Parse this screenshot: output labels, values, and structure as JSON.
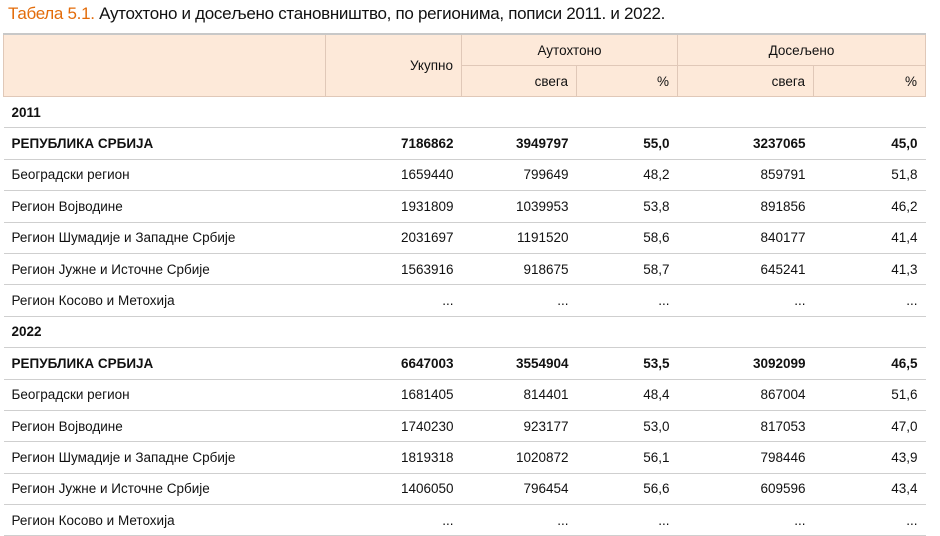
{
  "title": {
    "label": "Табела 5.1.",
    "text": "Аутохтоно и досељено становништво, по регионима, пописи 2011. и 2022."
  },
  "header": {
    "total": "Укупно",
    "autochthonous": "Аутохтоно",
    "immigrated": "Досељено",
    "all": "свега",
    "pct": "%"
  },
  "colors": {
    "title_label": "#e36c0a",
    "header_bg": "#fde9d9"
  },
  "sections": [
    {
      "year": "2011",
      "rows": [
        {
          "label": "РЕПУБЛИКА СРБИЈА",
          "bold": true,
          "values": [
            "7186862",
            "3949797",
            "55,0",
            "3237065",
            "45,0"
          ]
        },
        {
          "label": "Београдски регион",
          "values": [
            "1659440",
            "799649",
            "48,2",
            "859791",
            "51,8"
          ]
        },
        {
          "label": "Регион Војводине",
          "values": [
            "1931809",
            "1039953",
            "53,8",
            "891856",
            "46,2"
          ]
        },
        {
          "label": "Регион Шумадије и Западне Србије",
          "values": [
            "2031697",
            "1191520",
            "58,6",
            "840177",
            "41,4"
          ]
        },
        {
          "label": "Регион Јужне и Источне Србије",
          "values": [
            "1563916",
            "918675",
            "58,7",
            "645241",
            "41,3"
          ]
        },
        {
          "label": "Регион Косово и Метохија",
          "values": [
            "...",
            "...",
            "...",
            "...",
            "..."
          ]
        }
      ]
    },
    {
      "year": "2022",
      "rows": [
        {
          "label": "РЕПУБЛИКА СРБИЈА",
          "bold": true,
          "values": [
            "6647003",
            "3554904",
            "53,5",
            "3092099",
            "46,5"
          ]
        },
        {
          "label": "Београдски регион",
          "values": [
            "1681405",
            "814401",
            "48,4",
            "867004",
            "51,6"
          ]
        },
        {
          "label": "Регион Војводине",
          "values": [
            "1740230",
            "923177",
            "53,0",
            "817053",
            "47,0"
          ]
        },
        {
          "label": "Регион Шумадије и Западне Србије",
          "values": [
            "1819318",
            "1020872",
            "56,1",
            "798446",
            "43,9"
          ]
        },
        {
          "label": "Регион Јужне и Источне Србије",
          "values": [
            "1406050",
            "796454",
            "56,6",
            "609596",
            "43,4"
          ]
        },
        {
          "label": "Регион Косово и Метохија",
          "values": [
            "...",
            "...",
            "...",
            "...",
            "..."
          ]
        }
      ]
    }
  ]
}
